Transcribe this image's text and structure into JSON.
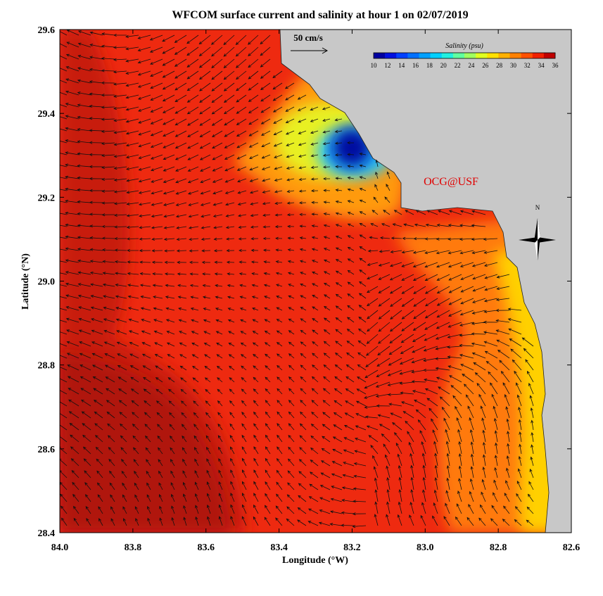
{
  "chart_data": {
    "type": "map",
    "title": "WFCOM surface current and salinity at hour 1 on 02/07/2019",
    "x_label": "Longitude (°W)",
    "y_label": "Latitude (°N)",
    "xlim": [
      84.0,
      82.6
    ],
    "ylim": [
      28.4,
      29.6
    ],
    "xticks": [
      {
        "value": 84,
        "label": "84.0"
      },
      83.8,
      83.6,
      83.4,
      83.2,
      {
        "value": 83,
        "label": "83.0"
      },
      82.8,
      82.6
    ],
    "yticks": [
      28.4,
      28.6,
      28.8,
      {
        "value": 29,
        "label": "29.0"
      },
      29.2,
      29.4,
      29.6
    ],
    "vector_scale_label": "50 cm/s",
    "colorbar_title": "Salinity (psu)",
    "clim": [
      10,
      36
    ],
    "colorbar_ticks": [
      10,
      12,
      14,
      16,
      18,
      20,
      22,
      24,
      26,
      28,
      30,
      32,
      34,
      36
    ],
    "colorbar_colors": [
      "#0000a0",
      "#0010e0",
      "#0040ff",
      "#0070ff",
      "#00a0ff",
      "#00d0ff",
      "#20f0e0",
      "#60ffa0",
      "#a0ff60",
      "#e0ff20",
      "#ffe000",
      "#ffb000",
      "#ff8000",
      "#ff5000",
      "#f02000",
      "#c00000"
    ],
    "credit": "OCG@USF",
    "compass_label": "N"
  }
}
